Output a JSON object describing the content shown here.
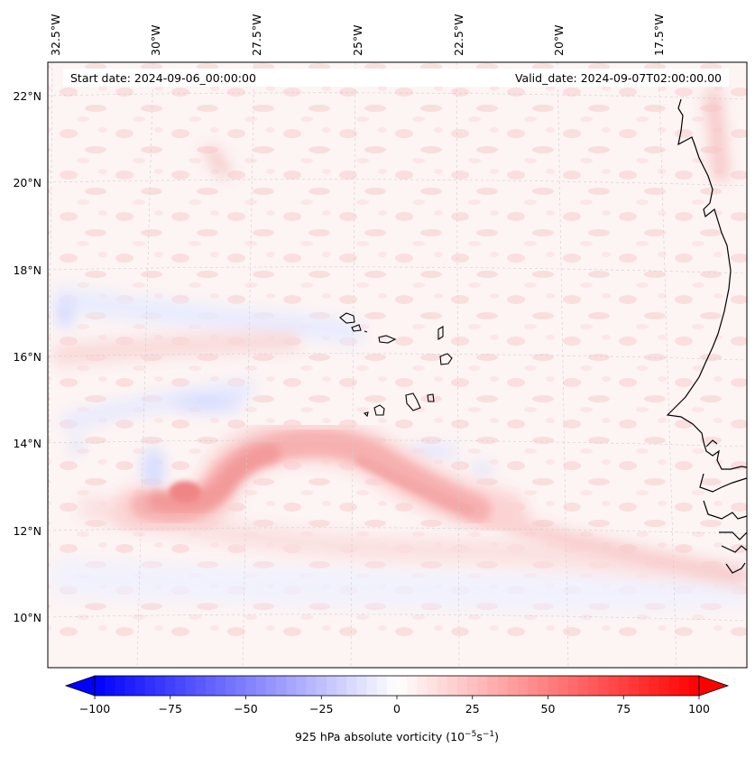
{
  "header": {
    "start_date": "Start date: 2024-09-06_00:00:00",
    "valid_date": "Valid_date: 2024-09-07T02:00:00.00"
  },
  "lon_labels": [
    "32.5°W",
    "30°W",
    "27.5°W",
    "25°W",
    "22.5°W",
    "20°W",
    "17.5°W"
  ],
  "lat_labels": [
    "22°N",
    "20°N",
    "18°N",
    "16°N",
    "14°N",
    "12°N",
    "10°N"
  ],
  "colorbar": {
    "label": "925 hPa absolute vorticity (10",
    "label_exp1": "−5",
    "label_mid": "s",
    "label_exp2": "−1",
    "label_end": ")",
    "ticks": [
      "−100",
      "−75",
      "−50",
      "−25",
      "0",
      "25",
      "50",
      "75",
      "100"
    ],
    "tick_values": [
      -100,
      -75,
      -50,
      -25,
      0,
      25,
      50,
      75,
      100
    ],
    "min": -100,
    "max": 100,
    "levels": 60,
    "cmap": "bwr",
    "low_color": "#0000ff",
    "mid_color": "#ffffff",
    "high_color": "#ff0000"
  },
  "map": {
    "coastline_color": "#000000",
    "gridline_color": "#cccccc",
    "background_tint": "#fdf3f3"
  }
}
